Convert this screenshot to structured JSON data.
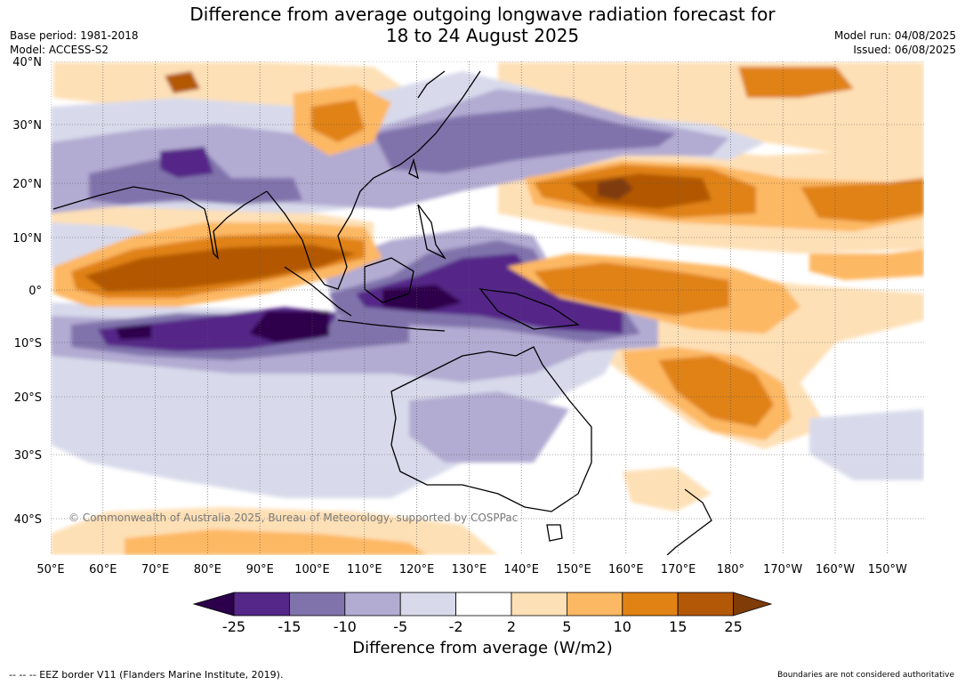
{
  "header": {
    "title_line1": "Difference from average outgoing longwave radiation forecast for",
    "title_line2": "18 to 24 August 2025",
    "base_period": "Base period: 1981-2018",
    "model": "Model: ACCESS-S2",
    "model_run": "Model run: 04/08/2025",
    "issued": "Issued: 06/08/2025"
  },
  "map": {
    "lat_labels": [
      "40°N",
      "30°N",
      "20°N",
      "10°N",
      "0°",
      "10°S",
      "20°S",
      "30°S",
      "40°S"
    ],
    "lon_labels": [
      "50°E",
      "60°E",
      "70°E",
      "80°E",
      "90°E",
      "100°E",
      "110°E",
      "120°E",
      "130°E",
      "140°E",
      "150°E",
      "160°E",
      "170°E",
      "180°",
      "170°W",
      "160°W",
      "150°W"
    ],
    "copyright": "© Commonwealth of Australia 2025, Bureau of Meteorology, supported by COSPPac",
    "colors": {
      "neg25": "#2d004b",
      "neg15": "#542788",
      "neg10": "#8073ac",
      "neg5": "#b2abd2",
      "neg2": "#d8daeb",
      "zero": "#ffffff",
      "pos2": "#fee0b6",
      "pos5": "#fdb863",
      "pos10": "#e08214",
      "pos15": "#b35806",
      "pos25": "#7f3b08"
    }
  },
  "colorbar": {
    "tick_labels": [
      "-25",
      "-15",
      "-10",
      "-5",
      "-2",
      "2",
      "5",
      "10",
      "15",
      "25"
    ],
    "title": "Difference from average (W/m2)"
  },
  "footer": {
    "eez_note": "--  --  -- EEZ border V11 (Flanders Marine Institute, 2019).",
    "disclaimer": "Boundaries are not considered authoritative"
  }
}
